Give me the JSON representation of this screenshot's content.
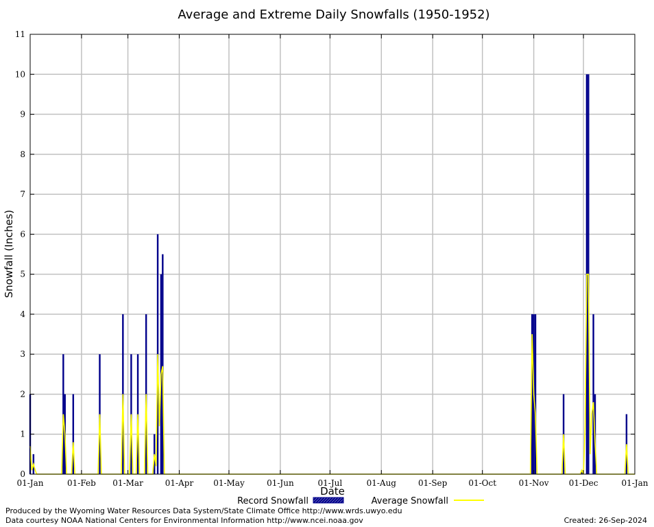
{
  "chart_data": {
    "type": "bar",
    "title": "Average and Extreme Daily Snowfalls (1950-1952)",
    "xlabel": "Date",
    "ylabel": "Snowfall (Inches)",
    "ylim": [
      0,
      11
    ],
    "yticks": [
      0,
      1,
      2,
      3,
      4,
      5,
      6,
      7,
      8,
      9,
      10,
      11
    ],
    "xlim": [
      1,
      366
    ],
    "xticks": [
      {
        "day": 1,
        "label": "01-Jan"
      },
      {
        "day": 32,
        "label": "01-Feb"
      },
      {
        "day": 60,
        "label": "01-Mar"
      },
      {
        "day": 91,
        "label": "01-Apr"
      },
      {
        "day": 121,
        "label": "01-May"
      },
      {
        "day": 152,
        "label": "01-Jun"
      },
      {
        "day": 182,
        "label": "01-Jul"
      },
      {
        "day": 213,
        "label": "01-Aug"
      },
      {
        "day": 244,
        "label": "01-Sep"
      },
      {
        "day": 274,
        "label": "01-Oct"
      },
      {
        "day": 305,
        "label": "01-Nov"
      },
      {
        "day": 335,
        "label": "01-Dec"
      },
      {
        "day": 366,
        "label": "01-Jan"
      }
    ],
    "grid": true,
    "legend": "bottom",
    "series": [
      {
        "name": "Record Snowfall",
        "style": "bar",
        "color": "#00008b",
        "points": [
          [
            1,
            2
          ],
          [
            3,
            0.5
          ],
          [
            21,
            3
          ],
          [
            22,
            2
          ],
          [
            27,
            2
          ],
          [
            43,
            3
          ],
          [
            57,
            4
          ],
          [
            62,
            3
          ],
          [
            66,
            3
          ],
          [
            71,
            4
          ],
          [
            76,
            1
          ],
          [
            78,
            6
          ],
          [
            80,
            5
          ],
          [
            81,
            5.5
          ],
          [
            304,
            4
          ],
          [
            305,
            4
          ],
          [
            306,
            4
          ],
          [
            323,
            2
          ],
          [
            334,
            0.1
          ],
          [
            337,
            10
          ],
          [
            338,
            10
          ],
          [
            341,
            4
          ],
          [
            342,
            2
          ],
          [
            361,
            1.5
          ]
        ]
      },
      {
        "name": "Average Snowfall",
        "style": "line",
        "color": "#ffff00",
        "points": [
          [
            1,
            0.7
          ],
          [
            2,
            0.1
          ],
          [
            3,
            0.25
          ],
          [
            4,
            0.1
          ],
          [
            5,
            0
          ],
          [
            20,
            0
          ],
          [
            21,
            1.5
          ],
          [
            22,
            1
          ],
          [
            23,
            0
          ],
          [
            26,
            0
          ],
          [
            27,
            0.8
          ],
          [
            28,
            0
          ],
          [
            42,
            0
          ],
          [
            43,
            1.5
          ],
          [
            44,
            0
          ],
          [
            56,
            0
          ],
          [
            57,
            2
          ],
          [
            58,
            0
          ],
          [
            61,
            0
          ],
          [
            62,
            1.5
          ],
          [
            63,
            0
          ],
          [
            65,
            0
          ],
          [
            66,
            1.5
          ],
          [
            67,
            0
          ],
          [
            70,
            0
          ],
          [
            71,
            2
          ],
          [
            72,
            0
          ],
          [
            75,
            0
          ],
          [
            76,
            0.5
          ],
          [
            77,
            0.2
          ],
          [
            78,
            3
          ],
          [
            79,
            1.2
          ],
          [
            80,
            2.5
          ],
          [
            81,
            2.7
          ],
          [
            82,
            0
          ],
          [
            303,
            0
          ],
          [
            304,
            3.5
          ],
          [
            305,
            2
          ],
          [
            306,
            1.5
          ],
          [
            307,
            0
          ],
          [
            322,
            0
          ],
          [
            323,
            1
          ],
          [
            324,
            0
          ],
          [
            333,
            0
          ],
          [
            334,
            0.1
          ],
          [
            335,
            0
          ],
          [
            336,
            1.2
          ],
          [
            337,
            5
          ],
          [
            338,
            5
          ],
          [
            339,
            0.5
          ],
          [
            340,
            1.5
          ],
          [
            341,
            1.8
          ],
          [
            342,
            0.8
          ],
          [
            343,
            0
          ],
          [
            360,
            0
          ],
          [
            361,
            0.75
          ],
          [
            362,
            0
          ],
          [
            366,
            0
          ]
        ]
      }
    ]
  },
  "footer": {
    "produced_by": "Produced by the Wyoming Water Resources Data System/State Climate Office http://www.wrds.uwyo.edu",
    "courtesy": "Data courtesy NOAA National Centers for Environmental Information http://www.ncei.noaa.gov",
    "created": "Created:  26-Sep-2024"
  }
}
